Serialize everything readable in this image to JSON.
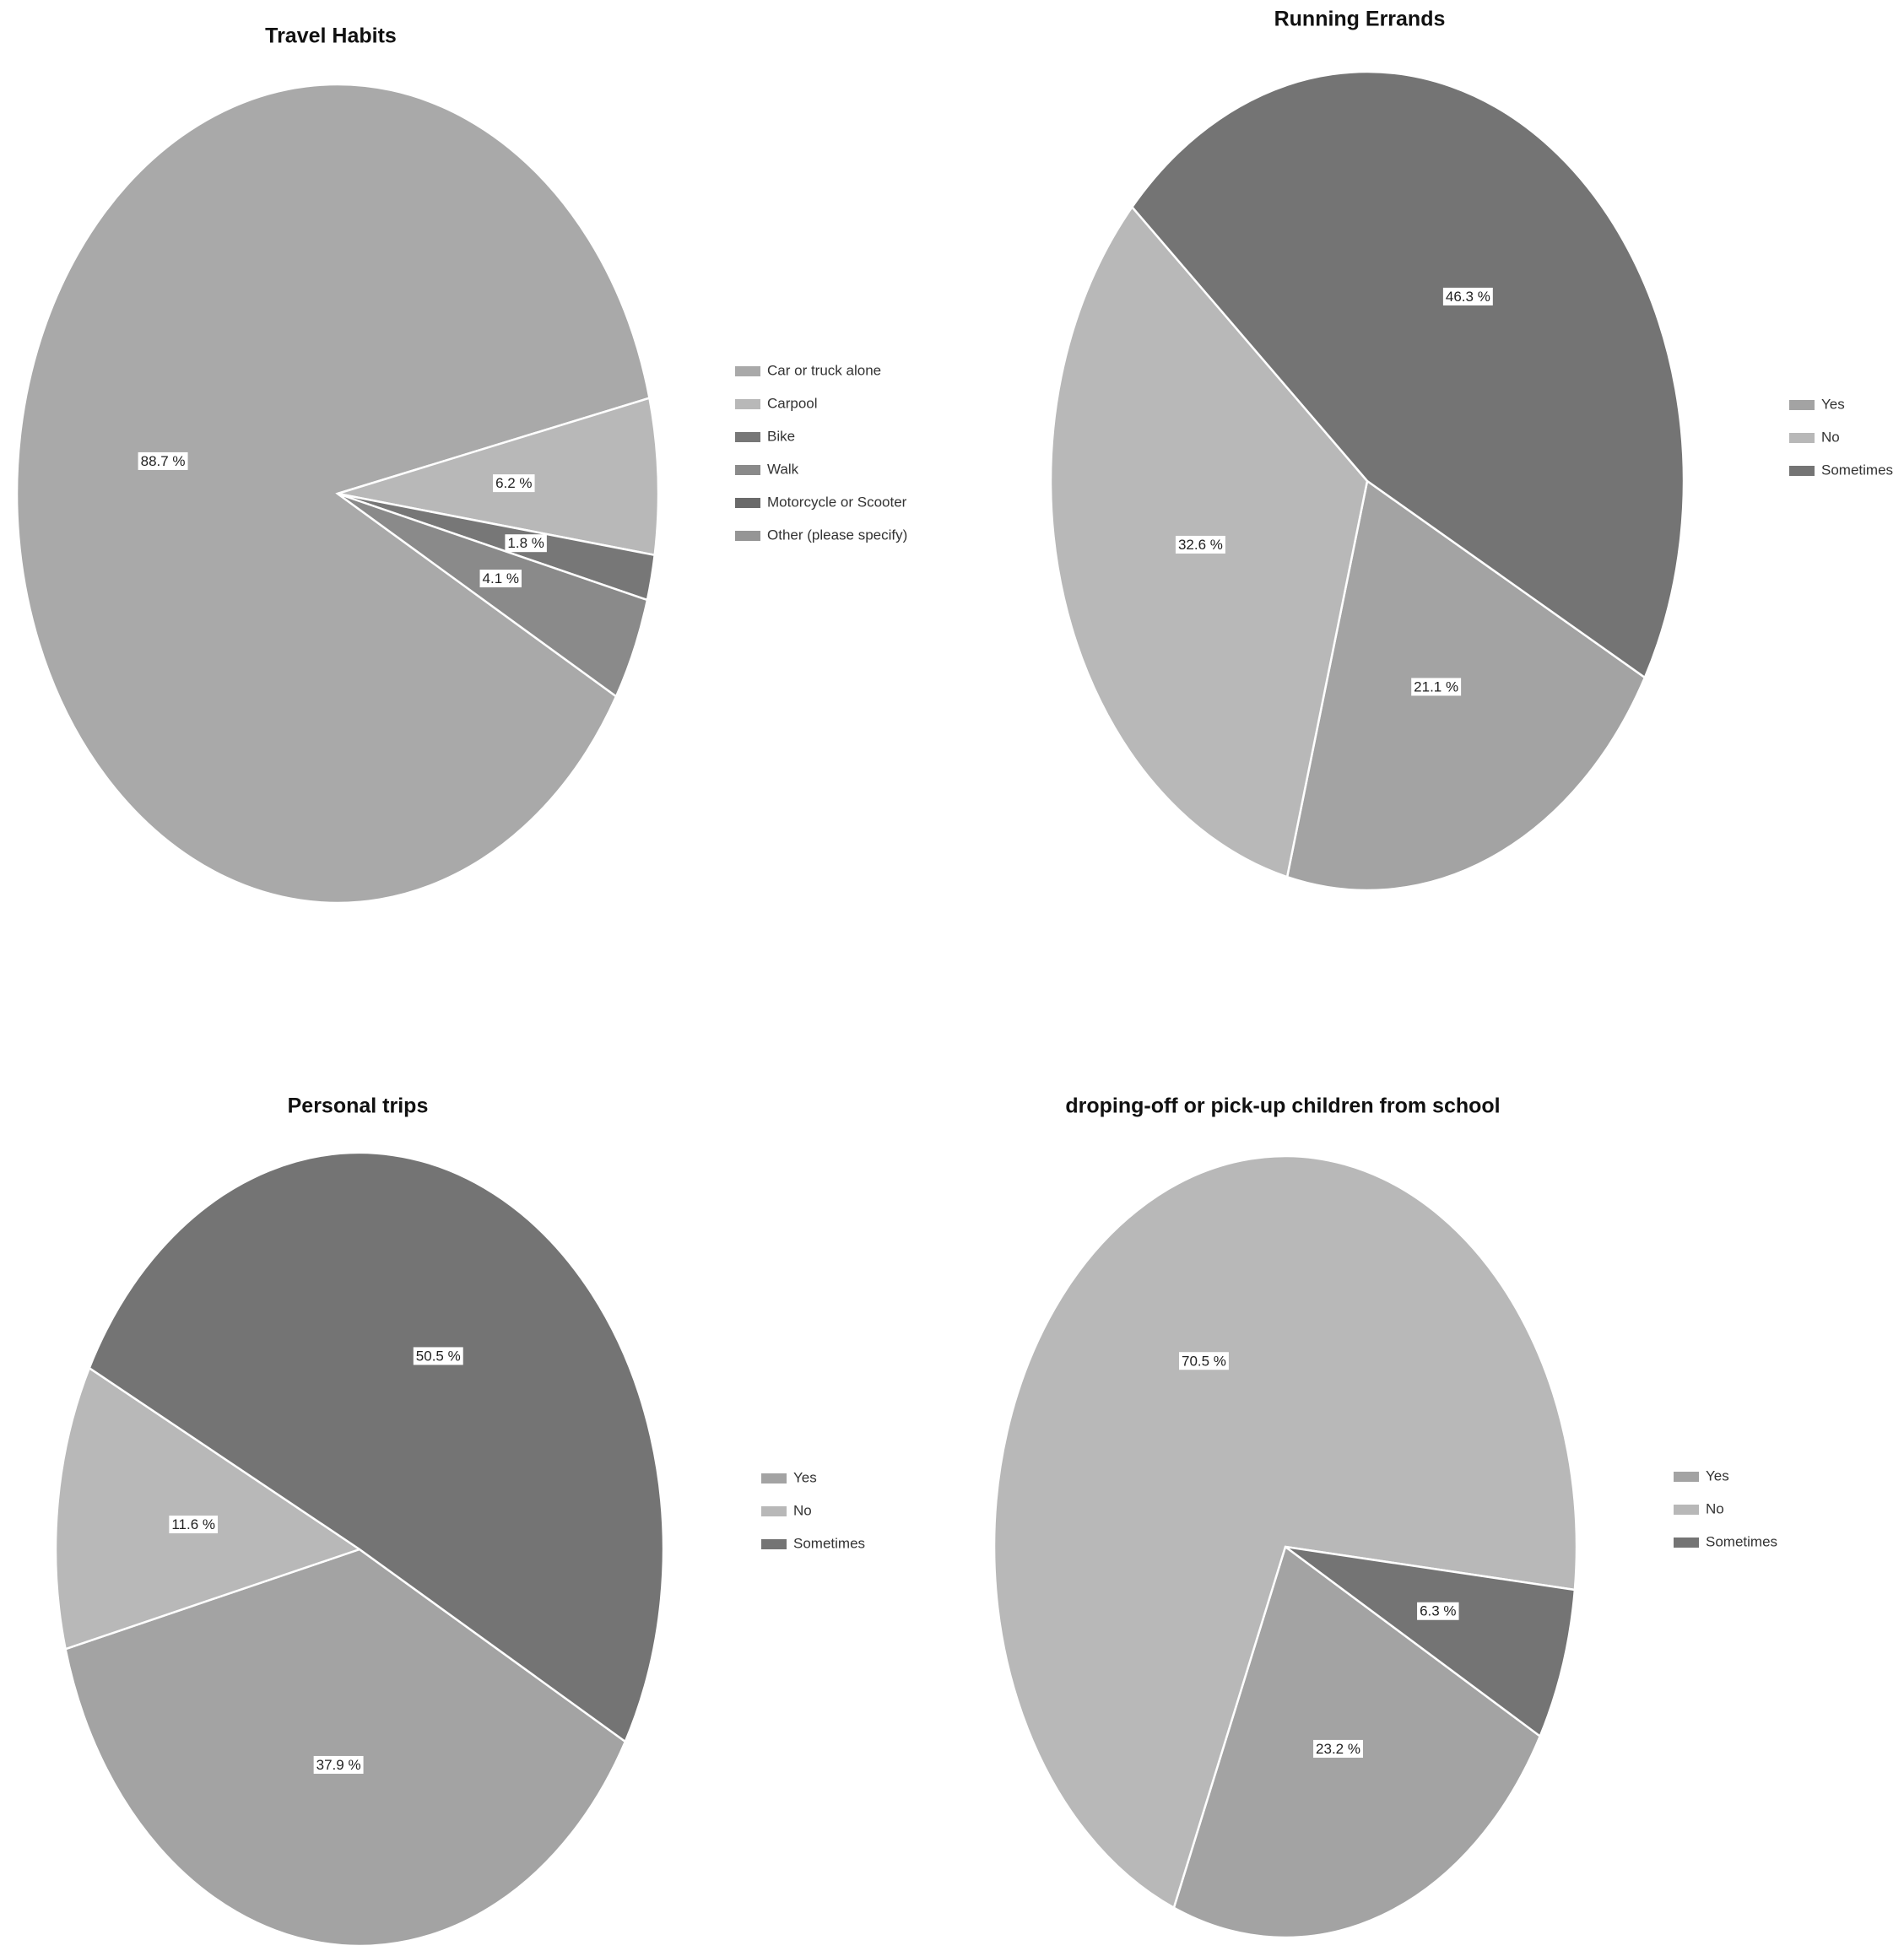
{
  "chart_data": [
    {
      "type": "pie",
      "title": "Travel Habits",
      "categories": [
        "Car or truck alone",
        "Carpool",
        "Bike",
        "Walk",
        "Motorcycle or Scooter",
        "Other (please specify)"
      ],
      "values": [
        88.7,
        6.2,
        1.8,
        4.1,
        0,
        0
      ],
      "value_labels": [
        "88.7 %",
        "6.2 %",
        "1.8 %",
        "4.1 %",
        null,
        null
      ],
      "colors": [
        "#a9a9a9",
        "#b8b8b8",
        "#777777",
        "#8a8a8a",
        "#6a6a6a",
        "#959595"
      ]
    },
    {
      "type": "pie",
      "title": "Running Errands",
      "categories": [
        "Yes",
        "No",
        "Sometimes"
      ],
      "values": [
        21.1,
        32.6,
        46.3
      ],
      "value_labels": [
        "21.1 %",
        "32.6 %",
        "46.3 %"
      ],
      "colors": [
        "#a3a3a3",
        "#b8b8b8",
        "#747474"
      ]
    },
    {
      "type": "pie",
      "title": "Personal trips",
      "categories": [
        "Yes",
        "No",
        "Sometimes"
      ],
      "values": [
        37.9,
        11.6,
        50.5
      ],
      "value_labels": [
        "37.9 %",
        "11.6 %",
        "50.5 %"
      ],
      "colors": [
        "#a3a3a3",
        "#b8b8b8",
        "#747474"
      ]
    },
    {
      "type": "pie",
      "title": "droping-off or pick-up children from school",
      "categories": [
        "Yes",
        "No",
        "Sometimes"
      ],
      "values": [
        23.2,
        70.5,
        6.3
      ],
      "value_labels": [
        "23.2 %",
        "70.5 %",
        "6.3 %"
      ],
      "colors": [
        "#a3a3a3",
        "#b8b8b8",
        "#747474"
      ]
    }
  ]
}
